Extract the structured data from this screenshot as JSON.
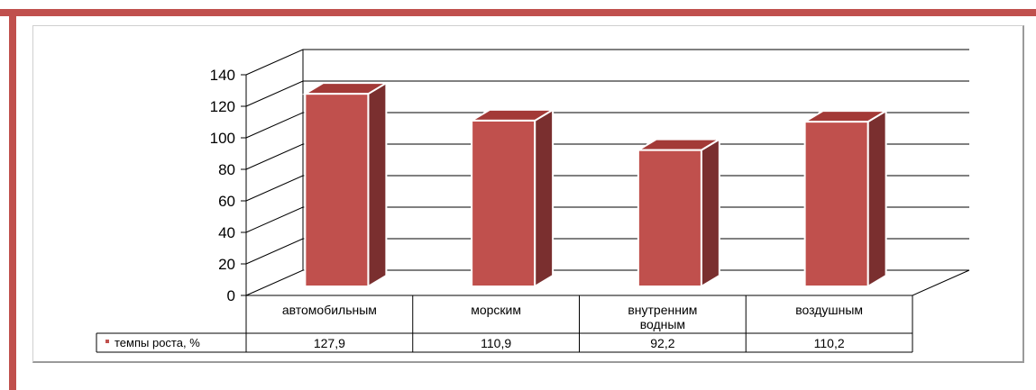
{
  "colors": {
    "frame": "#c0504d",
    "bar_front": "#c0504d",
    "bar_side": "#7a2f2f",
    "bar_top": "#a33a37",
    "grid": "#000000"
  },
  "chart_data": {
    "type": "bar",
    "style": "3d-column",
    "categories": [
      "автомобильным",
      "морским",
      "внутренним водным",
      "воздушным"
    ],
    "category_lines": [
      [
        "автомобильным"
      ],
      [
        "морским"
      ],
      [
        "внутренним",
        "водным"
      ],
      [
        "воздушным"
      ]
    ],
    "series": [
      {
        "name": "темпы роста, %",
        "values": [
          127.9,
          110.9,
          92.2,
          110.2
        ]
      }
    ],
    "value_labels": [
      "127,9",
      "110,9",
      "92,2",
      "110,2"
    ],
    "yticks": [
      0,
      20,
      40,
      60,
      80,
      100,
      120,
      140
    ],
    "ylim": [
      0,
      140
    ],
    "grid": true,
    "legend": "data-table"
  }
}
